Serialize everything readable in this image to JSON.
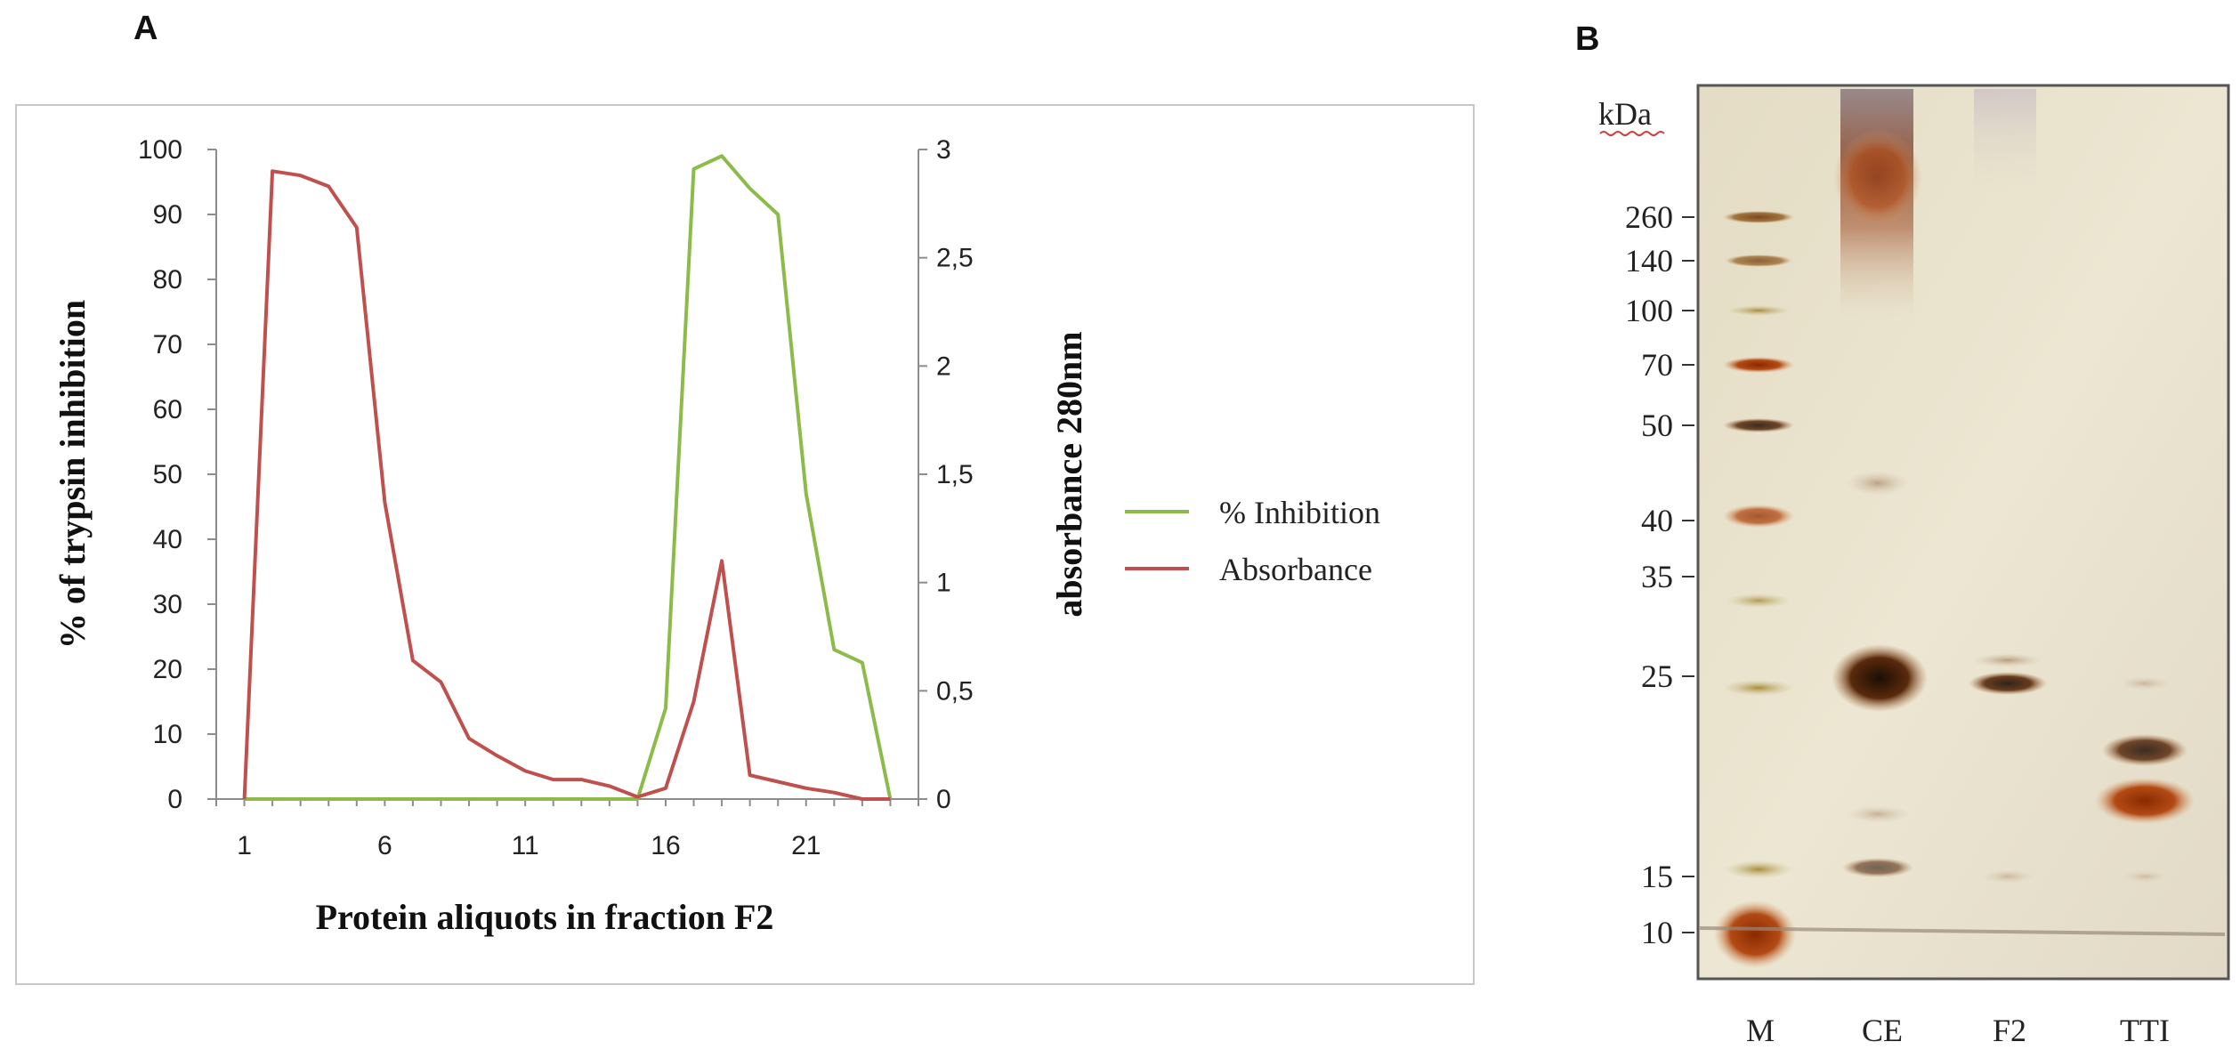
{
  "panel_a_label": "A",
  "panel_b_label": "B",
  "chart_data": {
    "type": "line",
    "xlabel": "Protein aliquots in fraction F2",
    "ylabel_left": "% of trypsin inhibition",
    "ylabel_right": "absorbance 280nm",
    "x_ticks": [
      1,
      6,
      11,
      16,
      21
    ],
    "xlim": [
      0,
      25
    ],
    "y_left_ticks": [
      "0",
      "10",
      "20",
      "30",
      "40",
      "50",
      "60",
      "70",
      "80",
      "90",
      "100"
    ],
    "y_left_lim": [
      0,
      100
    ],
    "y_right_ticks": [
      "0",
      "0,5",
      "1",
      "1,5",
      "2",
      "2,5",
      "3"
    ],
    "y_right_lim": [
      0,
      3
    ],
    "series": [
      {
        "name": "% Inhibition",
        "axis": "left",
        "color": "#8cbb4a",
        "x": [
          1,
          2,
          3,
          4,
          5,
          6,
          7,
          8,
          9,
          10,
          11,
          12,
          13,
          14,
          15,
          16,
          17,
          18,
          19,
          20,
          21,
          22,
          23,
          24
        ],
        "values": [
          0,
          0,
          0,
          0,
          0,
          0,
          0,
          0,
          0,
          0,
          0,
          0,
          0,
          0,
          0,
          14,
          97,
          99,
          94,
          90,
          47,
          23,
          21,
          0
        ]
      },
      {
        "name": "Absorbance",
        "axis": "right",
        "color": "#c0504d",
        "x": [
          1,
          2,
          3,
          4,
          5,
          6,
          7,
          8,
          9,
          10,
          11,
          12,
          13,
          14,
          15,
          16,
          17,
          18,
          19,
          20,
          21,
          22,
          23,
          24
        ],
        "values": [
          0,
          2.9,
          2.88,
          2.83,
          2.64,
          1.37,
          0.64,
          0.54,
          0.28,
          0.2,
          0.13,
          0.09,
          0.09,
          0.06,
          0.01,
          0.05,
          0.45,
          1.1,
          0.11,
          0.08,
          0.05,
          0.03,
          0.0,
          0.0
        ]
      }
    ],
    "legend_position": "right"
  },
  "gel": {
    "unit_label": "kDa",
    "markers": [
      "260",
      "140",
      "100",
      "70",
      "50",
      "40",
      "35",
      "25",
      "15",
      "10"
    ],
    "lanes": [
      "M",
      "CE",
      "F2",
      "TTI"
    ]
  }
}
